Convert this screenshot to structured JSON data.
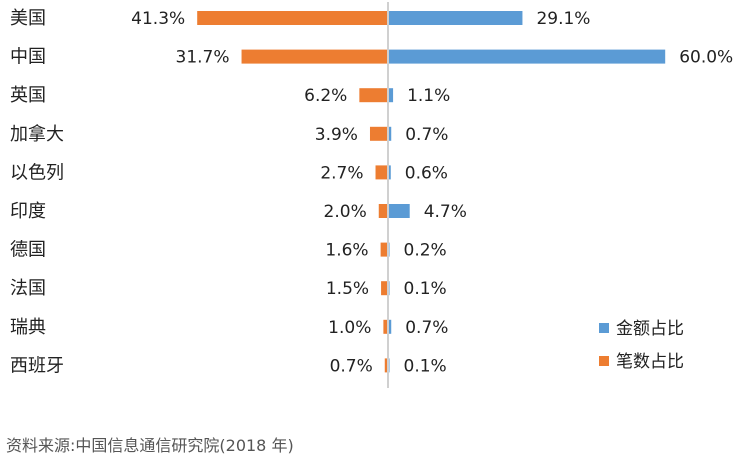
{
  "chart_data": {
    "type": "bar",
    "orientation": "horizontal-diverging",
    "categories": [
      "美国",
      "中国",
      "英国",
      "加拿大",
      "以色列",
      "印度",
      "德国",
      "法国",
      "瑞典",
      "西班牙"
    ],
    "series": [
      {
        "name": "金额占比",
        "side": "right",
        "color": "#5b9bd5",
        "values": [
          29.1,
          60.0,
          1.1,
          0.7,
          0.6,
          4.7,
          0.2,
          0.1,
          0.7,
          0.1
        ],
        "labels": [
          "29.1%",
          "60.0%",
          "1.1%",
          "0.7%",
          "0.6%",
          "4.7%",
          "0.2%",
          "0.1%",
          "0.7%",
          "0.1%"
        ]
      },
      {
        "name": "笔数占比",
        "side": "left",
        "color": "#ed7d31",
        "values": [
          41.3,
          31.7,
          6.2,
          3.9,
          2.7,
          2.0,
          1.6,
          1.5,
          1.0,
          0.7
        ],
        "labels": [
          "41.3%",
          "31.7%",
          "6.2%",
          "3.9%",
          "2.7%",
          "2.0%",
          "1.6%",
          "1.5%",
          "1.0%",
          "0.7%"
        ]
      }
    ],
    "legend_position": "bottom-right",
    "grid": false
  },
  "source_note": "资料来源:中国信息通信研究院(2018 年)"
}
